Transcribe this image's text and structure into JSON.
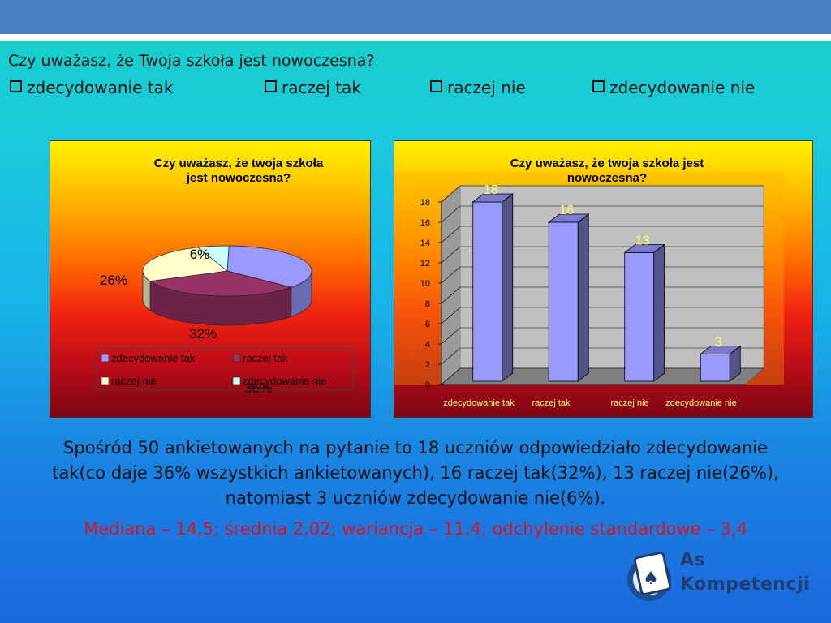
{
  "slide": {
    "question": "Czy uważasz, że Twoja szkoła jest nowoczesna?",
    "options": [
      "zdecydowanie tak",
      "raczej tak",
      "raczej nie",
      "zdecydowanie nie"
    ],
    "summary_lines": [
      "Spośród 50 ankietowanych na pytanie to 18 uczniów odpowiedziało zdecydowanie",
      "tak(co daje 36% wszystkich ankietowanych), 16 raczej tak(32%), 13 raczej nie(26%),",
      "natomiast 3 uczniów zdecydowanie nie(6%)."
    ],
    "stats": "Mediana – 14,5; średnia 2,02; wariancja – 11,4; odchylenie standardowe – 3,4",
    "logo": {
      "line1": "As",
      "line2": "Kompetencji"
    }
  },
  "colors": {
    "series": [
      "#9999ff",
      "#993366",
      "#ffffcc",
      "#ccffff"
    ],
    "bar": "#9999ff",
    "value_label": "#ffff66",
    "plot_wall": "#c0c0c0"
  },
  "chart_data": [
    {
      "type": "pie",
      "title": "Czy uważasz, że twoja szkoła jest nowoczesna?",
      "categories": [
        "zdecydowanie tak",
        "raczej tak",
        "raczej nie",
        "zdecydowanie nie"
      ],
      "values": [
        36,
        32,
        26,
        6
      ],
      "labels": [
        "36%",
        "32%",
        "26%",
        "6%"
      ],
      "legend": "bottom"
    },
    {
      "type": "bar",
      "title": "Czy uważasz, że twoja szkoła jest nowoczesna?",
      "categories": [
        "zdecydowanie tak",
        "raczej tak",
        "raczej nie",
        "zdecydowanie nie"
      ],
      "values": [
        18,
        16,
        13,
        3
      ],
      "ylim": [
        0,
        18
      ],
      "yticks": [
        0,
        2,
        4,
        6,
        8,
        10,
        12,
        14,
        16,
        18
      ],
      "grid": true
    }
  ]
}
